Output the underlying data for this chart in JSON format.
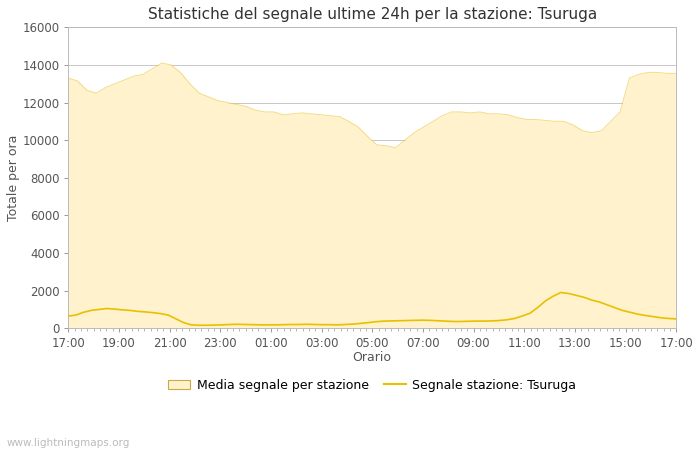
{
  "title": "Statistiche del segnale ultime 24h per la stazione: Tsuruga",
  "xlabel": "Orario",
  "ylabel": "Totale per ora",
  "xlim_labels": [
    "17:00",
    "19:00",
    "21:00",
    "23:00",
    "01:00",
    "03:00",
    "05:00",
    "07:00",
    "09:00",
    "11:00",
    "13:00",
    "15:00",
    "17:00"
  ],
  "ylim": [
    0,
    16000
  ],
  "yticks": [
    0,
    2000,
    4000,
    6000,
    8000,
    10000,
    12000,
    14000,
    16000
  ],
  "fill_color": "#FFF2CC",
  "fill_edge_color": "#E8C840",
  "line_color": "#E8C000",
  "bg_color": "#FFFFFF",
  "plot_bg_color": "#FFFFFF",
  "grid_color": "#C8C8C8",
  "watermark": "www.lightningmaps.org",
  "legend_fill_label": "Media segnale per stazione",
  "legend_line_label": "Segnale stazione: Tsuruga",
  "avg_signal": [
    13300,
    13150,
    12650,
    12500,
    12800,
    13000,
    13200,
    13400,
    13500,
    13800,
    14100,
    14000,
    13600,
    13000,
    12500,
    12300,
    12100,
    12000,
    11900,
    11800,
    11600,
    11500,
    11500,
    11350,
    11400,
    11450,
    11400,
    11350,
    11300,
    11250,
    11000,
    10700,
    10200,
    9750,
    9700,
    9600,
    10000,
    10400,
    10700,
    11000,
    11300,
    11500,
    11500,
    11450,
    11500,
    11400,
    11400,
    11350,
    11200,
    11100,
    11100,
    11050,
    11000,
    11000,
    10800,
    10500,
    10400,
    10500,
    11000,
    11500,
    13300,
    13500,
    13600,
    13600,
    13550,
    13550
  ],
  "station_signal": [
    650,
    700,
    850,
    950,
    1000,
    1050,
    1020,
    980,
    950,
    900,
    870,
    830,
    780,
    700,
    500,
    300,
    180,
    160,
    160,
    170,
    180,
    200,
    210,
    200,
    190,
    180,
    180,
    180,
    190,
    200,
    200,
    210,
    200,
    190,
    190,
    180,
    200,
    220,
    260,
    300,
    350,
    380,
    390,
    400,
    410,
    420,
    430,
    420,
    400,
    380,
    360,
    360,
    370,
    380,
    380,
    390,
    410,
    450,
    520,
    650,
    800,
    1100,
    1450,
    1700,
    1900,
    1850,
    1750,
    1650,
    1500,
    1400,
    1250,
    1100,
    950,
    850,
    750,
    680,
    620,
    560,
    520,
    500
  ],
  "title_fontsize": 11,
  "axis_fontsize": 9,
  "tick_fontsize": 8.5,
  "watermark_fontsize": 7.5
}
